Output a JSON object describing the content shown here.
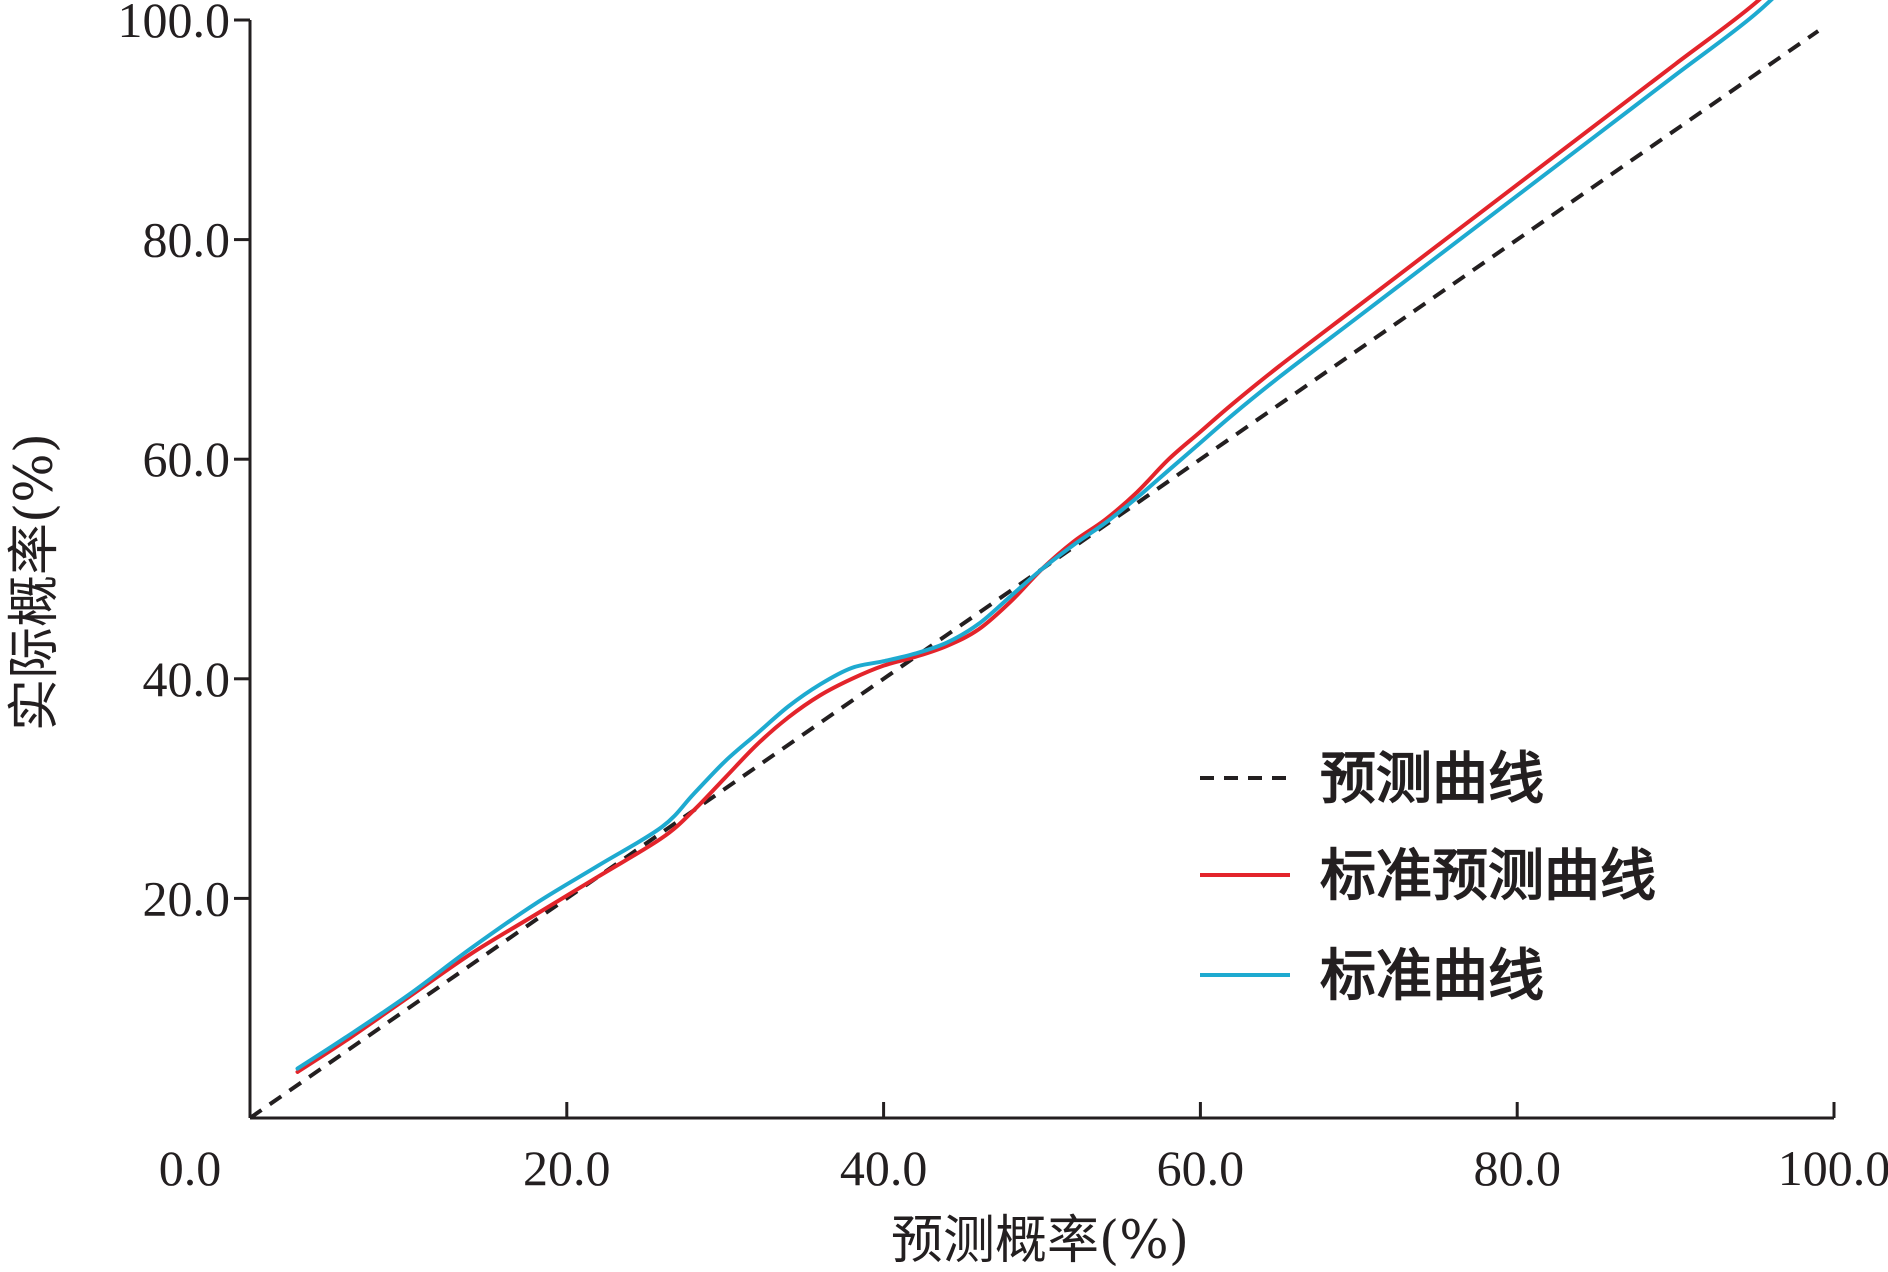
{
  "chart_data": {
    "type": "line",
    "xlabel": "预测概率(%)",
    "ylabel": "实际概率(%)",
    "xlim": [
      0,
      100
    ],
    "ylim": [
      0,
      100
    ],
    "x_ticks": [
      "0.0",
      "20.0",
      "40.0",
      "60.0",
      "80.0",
      "100.0"
    ],
    "y_ticks": [
      "20.0",
      "40.0",
      "60.0",
      "80.0",
      "100.0"
    ],
    "grid": false,
    "legend_position": "bottom-right",
    "series": [
      {
        "name": "预测曲线",
        "color": "#231f20",
        "style": "dashed",
        "x": [
          0,
          99
        ],
        "y": [
          0,
          99
        ]
      },
      {
        "name": "标准预测曲线",
        "color": "#e3242b",
        "style": "solid",
        "x": [
          3,
          6,
          10,
          14,
          18,
          22,
          26,
          28,
          30,
          32,
          34,
          36,
          38,
          40,
          42,
          44,
          46,
          48,
          50,
          52,
          54,
          56,
          58,
          60,
          62,
          65,
          70,
          75,
          80,
          85,
          90,
          95,
          99
        ],
        "y": [
          4.2,
          7,
          11,
          15,
          18.5,
          22,
          25.5,
          28,
          31,
          34,
          36.5,
          38.5,
          40,
          41.2,
          42,
          43,
          44.5,
          47,
          50,
          52.5,
          54.5,
          57,
          60,
          62.5,
          65,
          68.5,
          74,
          79.5,
          85,
          90.5,
          96,
          101.5,
          107
        ]
      },
      {
        "name": "标准曲线",
        "color": "#1eaad0",
        "style": "solid",
        "x": [
          3,
          6,
          10,
          14,
          18,
          22,
          26,
          28,
          30,
          32,
          34,
          36,
          38,
          40,
          42,
          44,
          46,
          48,
          50,
          52,
          54,
          56,
          58,
          60,
          62,
          65,
          70,
          75,
          80,
          85,
          90,
          95,
          99
        ],
        "y": [
          4.5,
          7.3,
          11.2,
          15.5,
          19.5,
          23,
          26.5,
          29.5,
          32.5,
          35,
          37.5,
          39.5,
          41,
          41.6,
          42.3,
          43.3,
          45,
          47.5,
          50,
          52.2,
          54.2,
          56.5,
          59,
          61.5,
          64,
          67.5,
          73,
          78.5,
          84,
          89.5,
          95,
          100.5,
          106
        ]
      }
    ]
  }
}
